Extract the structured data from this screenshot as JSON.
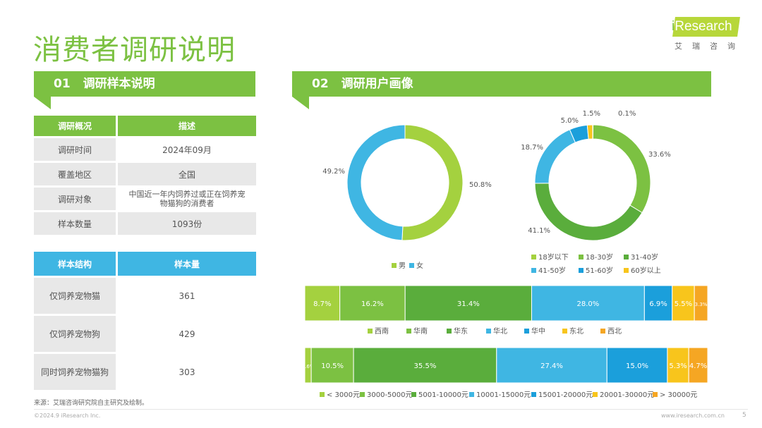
{
  "title": "消费者调研说明",
  "logo": {
    "brand_i": "i",
    "brand_rest": "Research",
    "subtitle": "艾瑞咨询"
  },
  "section1": {
    "num": "01",
    "label": "调研样本说明"
  },
  "section2": {
    "num": "02",
    "label": "调研用户画像"
  },
  "survey_table": {
    "headers": [
      "调研概况",
      "描述"
    ],
    "rows": [
      [
        "调研时间",
        "2024年09月"
      ],
      [
        "覆盖地区",
        "全国"
      ],
      [
        "调研对象",
        "中国近一年内饲养过或正在饲养宠物猫狗的消费者"
      ],
      [
        "样本数量",
        "1093份"
      ]
    ]
  },
  "sample_table": {
    "headers": [
      "样本结构",
      "样本量"
    ],
    "rows": [
      [
        "仅饲养宠物猫",
        "361"
      ],
      [
        "仅饲养宠物狗",
        "429"
      ],
      [
        "同时饲养宠物猫狗",
        "303"
      ]
    ]
  },
  "source": "来源：艾瑞咨询研究院自主研究及绘制。",
  "footer_left": "©2024.9 iResearch Inc.",
  "footer_right": "www.iresearch.com.cn",
  "page_number": "5",
  "colors": {
    "green": "#7cc142",
    "light_green": "#9ccf45",
    "dark_green": "#5aad3c",
    "blue": "#3fb6e3",
    "mid_blue": "#1b9fdb",
    "yellow": "#f8c51c",
    "orange": "#f5a623"
  },
  "chart_data": [
    {
      "type": "pie",
      "categories": [
        "男",
        "女"
      ],
      "values": [
        50.8,
        49.2
      ],
      "labels": [
        "50.8%",
        "49.2%"
      ],
      "colors": [
        "#a4d13f",
        "#3fb6e3"
      ],
      "legend_position": "bottom"
    },
    {
      "type": "pie",
      "categories": [
        "18岁以下",
        "18-30岁",
        "31-40岁",
        "41-50岁",
        "51-60岁",
        "60岁以上"
      ],
      "values": [
        0.1,
        33.6,
        41.1,
        18.7,
        5.0,
        1.5
      ],
      "labels": [
        "0.1%",
        "33.6%",
        "41.1%",
        "18.7%",
        "5.0%",
        "1.5%"
      ],
      "colors": [
        "#a4d13f",
        "#7cc142",
        "#5aad3c",
        "#3fb6e3",
        "#1b9fdb",
        "#f8c51c"
      ],
      "legend_position": "bottom"
    },
    {
      "type": "bar",
      "orientation": "horizontal-stacked",
      "categories": [
        "西南",
        "华南",
        "华东",
        "华北",
        "华中",
        "东北",
        "西北"
      ],
      "values": [
        8.7,
        16.2,
        31.4,
        28.0,
        6.9,
        5.5,
        3.3
      ],
      "labels": [
        "8.7%",
        "16.2%",
        "31.4%",
        "28.0%",
        "6.9%",
        "5.5%",
        "3.3%"
      ],
      "colors": [
        "#a4d13f",
        "#7cc142",
        "#5aad3c",
        "#3fb6e3",
        "#1b9fdb",
        "#f8c51c",
        "#f5a623"
      ],
      "legend_position": "bottom"
    },
    {
      "type": "bar",
      "orientation": "horizontal-stacked",
      "categories": [
        "< 3000元",
        "3000-5000元",
        "5001-10000元",
        "10001-15000元",
        "15001-20000元",
        "20001-30000元",
        "> 30000元"
      ],
      "values": [
        1.6,
        10.5,
        35.5,
        27.4,
        15.0,
        5.3,
        4.7
      ],
      "labels": [
        "1.6%",
        "10.5%",
        "35.5%",
        "27.4%",
        "15.0%",
        "5.3%",
        "4.7%"
      ],
      "colors": [
        "#a4d13f",
        "#7cc142",
        "#5aad3c",
        "#3fb6e3",
        "#1b9fdb",
        "#f8c51c",
        "#f5a623"
      ],
      "legend_position": "bottom"
    }
  ]
}
